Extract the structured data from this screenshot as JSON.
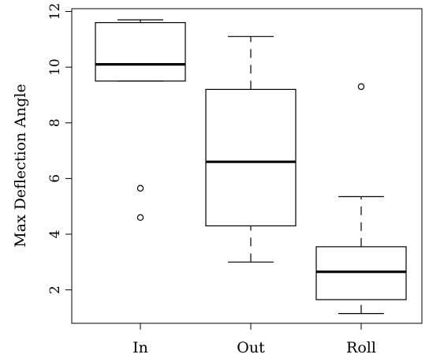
{
  "chart_data": {
    "type": "boxplot",
    "ylabel": "Max Deflection Angle",
    "xlabel": "",
    "ylim": [
      0.8,
      12.1
    ],
    "yticks": [
      2,
      4,
      6,
      8,
      10,
      12
    ],
    "categories": [
      "In",
      "Out",
      "Roll"
    ],
    "boxes": [
      {
        "name": "In",
        "whisker_low": 9.5,
        "q1": 9.5,
        "median": 10.1,
        "q3": 11.6,
        "whisker_high": 11.7,
        "outliers": [
          5.65,
          4.6
        ]
      },
      {
        "name": "Out",
        "whisker_low": 3.0,
        "q1": 4.3,
        "median": 6.6,
        "q3": 9.2,
        "whisker_high": 11.1,
        "outliers": []
      },
      {
        "name": "Roll",
        "whisker_low": 1.15,
        "q1": 1.65,
        "median": 2.65,
        "q3": 3.55,
        "whisker_high": 5.35,
        "outliers": [
          9.3
        ]
      }
    ],
    "grid": false,
    "legend": "none"
  }
}
